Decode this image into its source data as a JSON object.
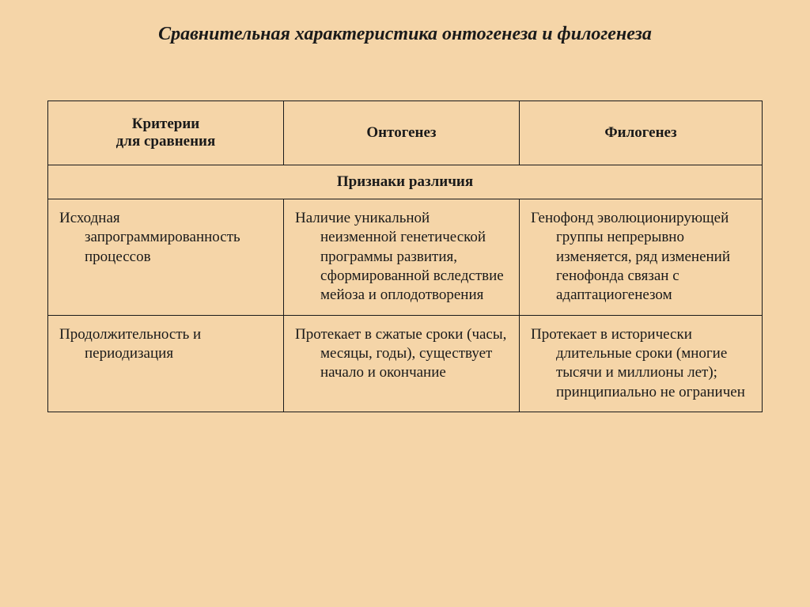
{
  "title": "Сравнительная характеристика онтогенеза и филогенеза",
  "headers": {
    "criteria": "Критерии\nдля сравнения",
    "ontogenesis": "Онтогенез",
    "phylogenesis": "Филогенез"
  },
  "section_header": "Признаки различия",
  "rows": [
    {
      "criteria": "Исходная запрограммированность процессов",
      "ontogenesis": "Наличие уникальной неизменной генетической программы развития, сформированной вследствие мейоза и оплодотворения",
      "phylogenesis": "Генофонд эволюционирующей группы непрерывно изменяется, ряд изменений генофонда связан с адаптациогенезом"
    },
    {
      "criteria": "Продолжительность и периодизация",
      "ontogenesis": "Протекает в сжатые сроки (часы, месяцы, годы), существует начало и окончание",
      "phylogenesis": "Протекает в исторически длительные сроки (многие тысячи и миллионы лет); принципиально не ограничен"
    }
  ],
  "colors": {
    "background": "#f5d5a8",
    "border": "#1a1a1a",
    "text": "#1a1a1a"
  }
}
